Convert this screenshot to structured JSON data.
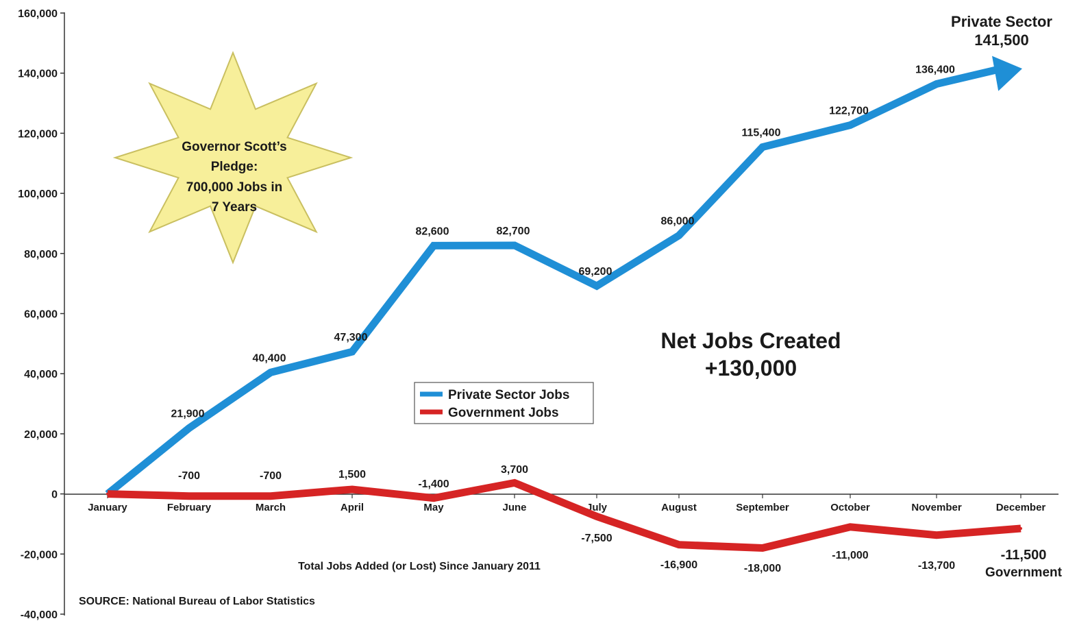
{
  "chart_data": {
    "type": "line",
    "categories": [
      "January",
      "February",
      "March",
      "April",
      "May",
      "June",
      "July",
      "August",
      "September",
      "October",
      "November",
      "December"
    ],
    "series": [
      {
        "name": "Private Sector Jobs",
        "color": "#1f8fd6",
        "values": [
          0,
          21900,
          40400,
          47300,
          82600,
          82700,
          69200,
          86000,
          115400,
          122700,
          136400,
          141500
        ],
        "labels": [
          "",
          "21,900",
          "40,400",
          "47,300",
          "82,600",
          "82,700",
          "69,200",
          "86,000",
          "115,400",
          "122,700",
          "136,400",
          ""
        ]
      },
      {
        "name": "Government Jobs",
        "color": "#d62424",
        "values": [
          0,
          -700,
          -700,
          1500,
          -1400,
          3700,
          -7500,
          -16900,
          -18000,
          -11000,
          -13700,
          -11500
        ],
        "labels": [
          "",
          "-700",
          "-700",
          "1,500",
          "-1,400",
          "3,700",
          "-7,500",
          "-16,900",
          "-18,000",
          "-11,000",
          "-13,700",
          ""
        ]
      }
    ],
    "yticks": [
      "160,000",
      "140,000",
      "120,000",
      "100,000",
      "80,000",
      "60,000",
      "40,000",
      "20,000",
      "0",
      "-20,000",
      "-40,000"
    ],
    "ylim": [
      -40000,
      160000
    ],
    "legend_position": "center",
    "end_labels": {
      "private_title": "Private Sector",
      "private_value": "141,500",
      "government_value": "-11,500",
      "government_title": "Government"
    },
    "net_jobs": {
      "line1": "Net Jobs Created",
      "line2": "+130,000"
    },
    "starburst": {
      "lines": [
        "Governor Scott’s",
        "Pledge:",
        "700,000 Jobs in",
        "7 Years"
      ]
    },
    "xlabel": "Total Jobs Added (or Lost) Since January 2011",
    "source": "SOURCE: National Bureau of Labor Statistics"
  }
}
